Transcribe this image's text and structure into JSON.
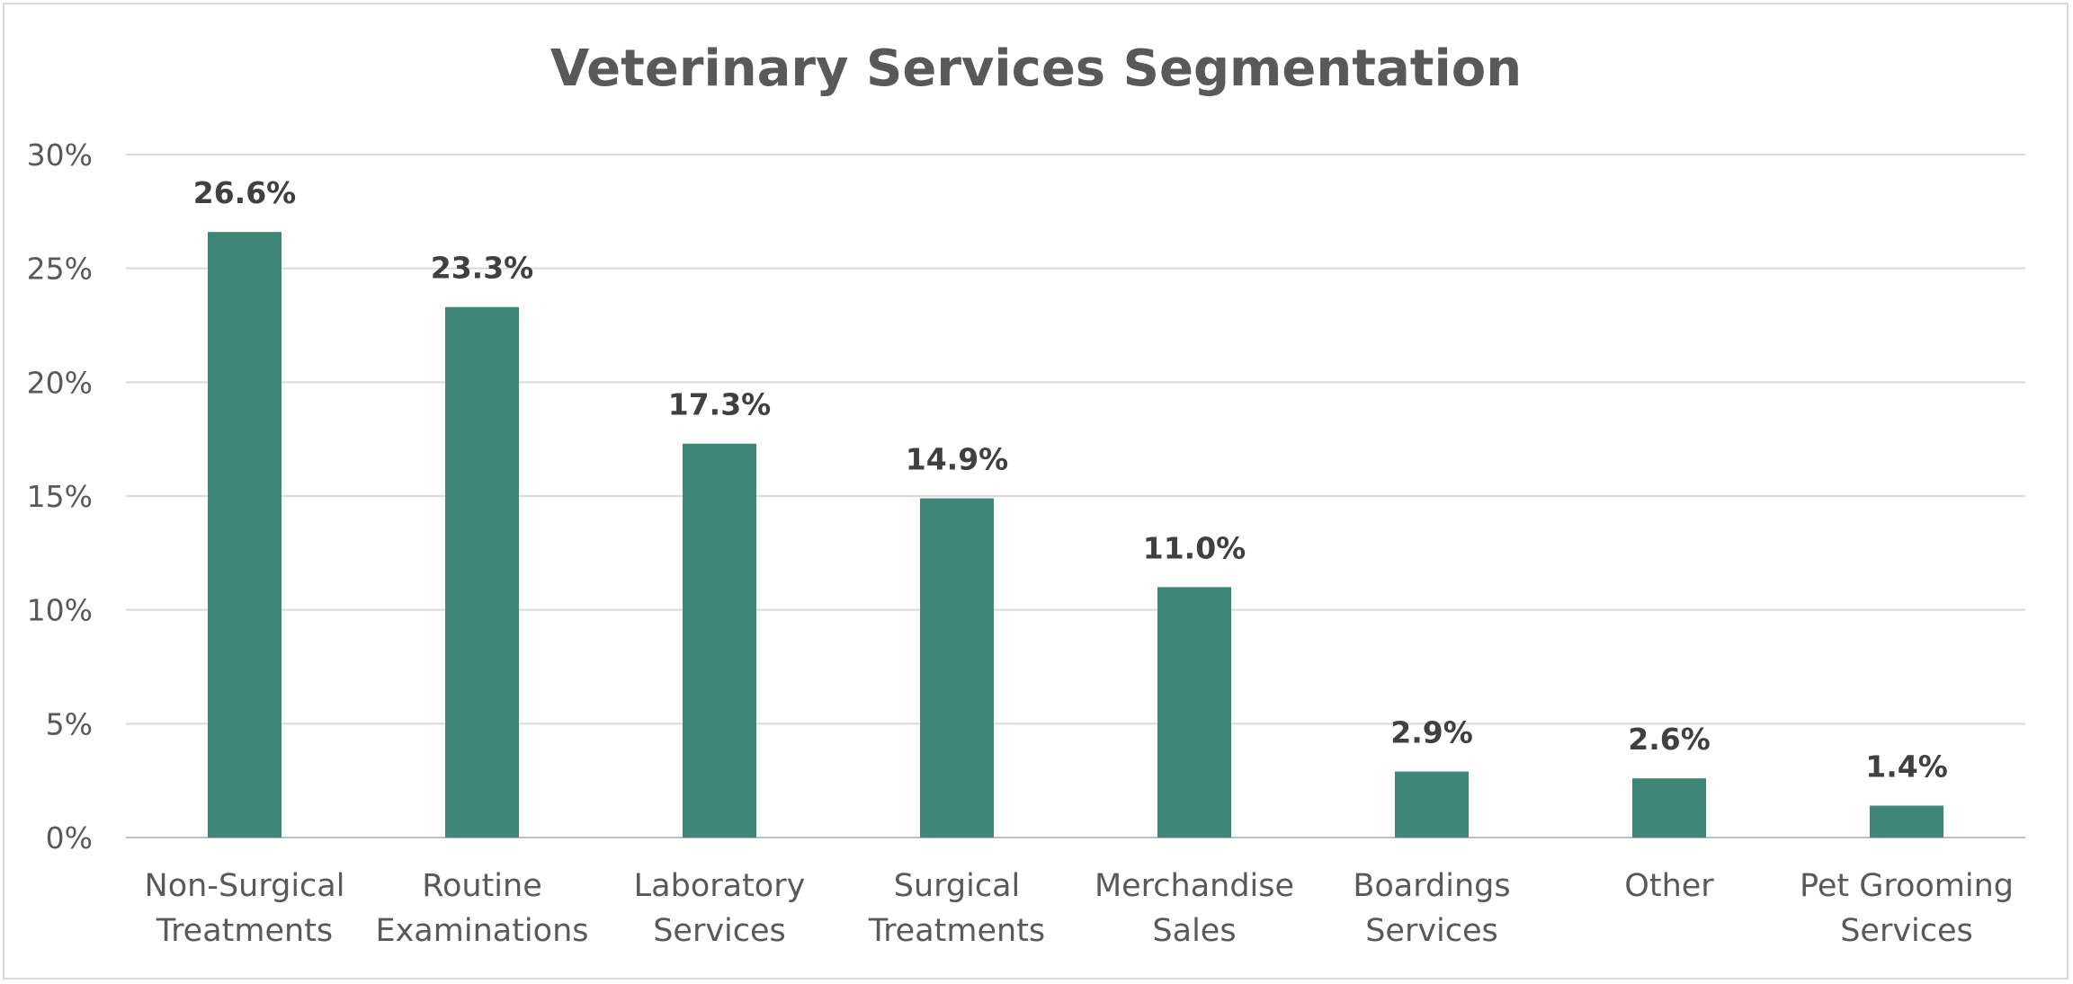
{
  "chart_data": {
    "type": "bar",
    "title": "Veterinary Services Segmentation",
    "xlabel": "",
    "ylabel": "",
    "categories": [
      [
        "Non-Surgical",
        "Treatments"
      ],
      [
        "Routine",
        "Examinations"
      ],
      [
        "Laboratory",
        "Services"
      ],
      [
        "Surgical",
        "Treatments"
      ],
      [
        "Merchandise",
        "Sales"
      ],
      [
        "Boardings",
        "Services"
      ],
      [
        "Other"
      ],
      [
        "Pet Grooming",
        "Services"
      ]
    ],
    "values": [
      26.6,
      23.3,
      17.3,
      14.9,
      11.0,
      2.9,
      2.6,
      1.4
    ],
    "data_labels": [
      "26.6%",
      "23.3%",
      "17.3%",
      "14.9%",
      "11.0%",
      "2.9%",
      "2.6%",
      "1.4%"
    ],
    "ylim": [
      0,
      30
    ],
    "y_ticks": [
      0,
      5,
      10,
      15,
      20,
      25,
      30
    ],
    "y_tick_labels": [
      "0%",
      "5%",
      "10%",
      "15%",
      "20%",
      "25%",
      "30%"
    ],
    "grid": true,
    "legend": "none",
    "colors": {
      "bar": "#3e8677",
      "gridline": "#d9d9d9",
      "axis_text": "#595959",
      "data_label": "#404040"
    }
  }
}
